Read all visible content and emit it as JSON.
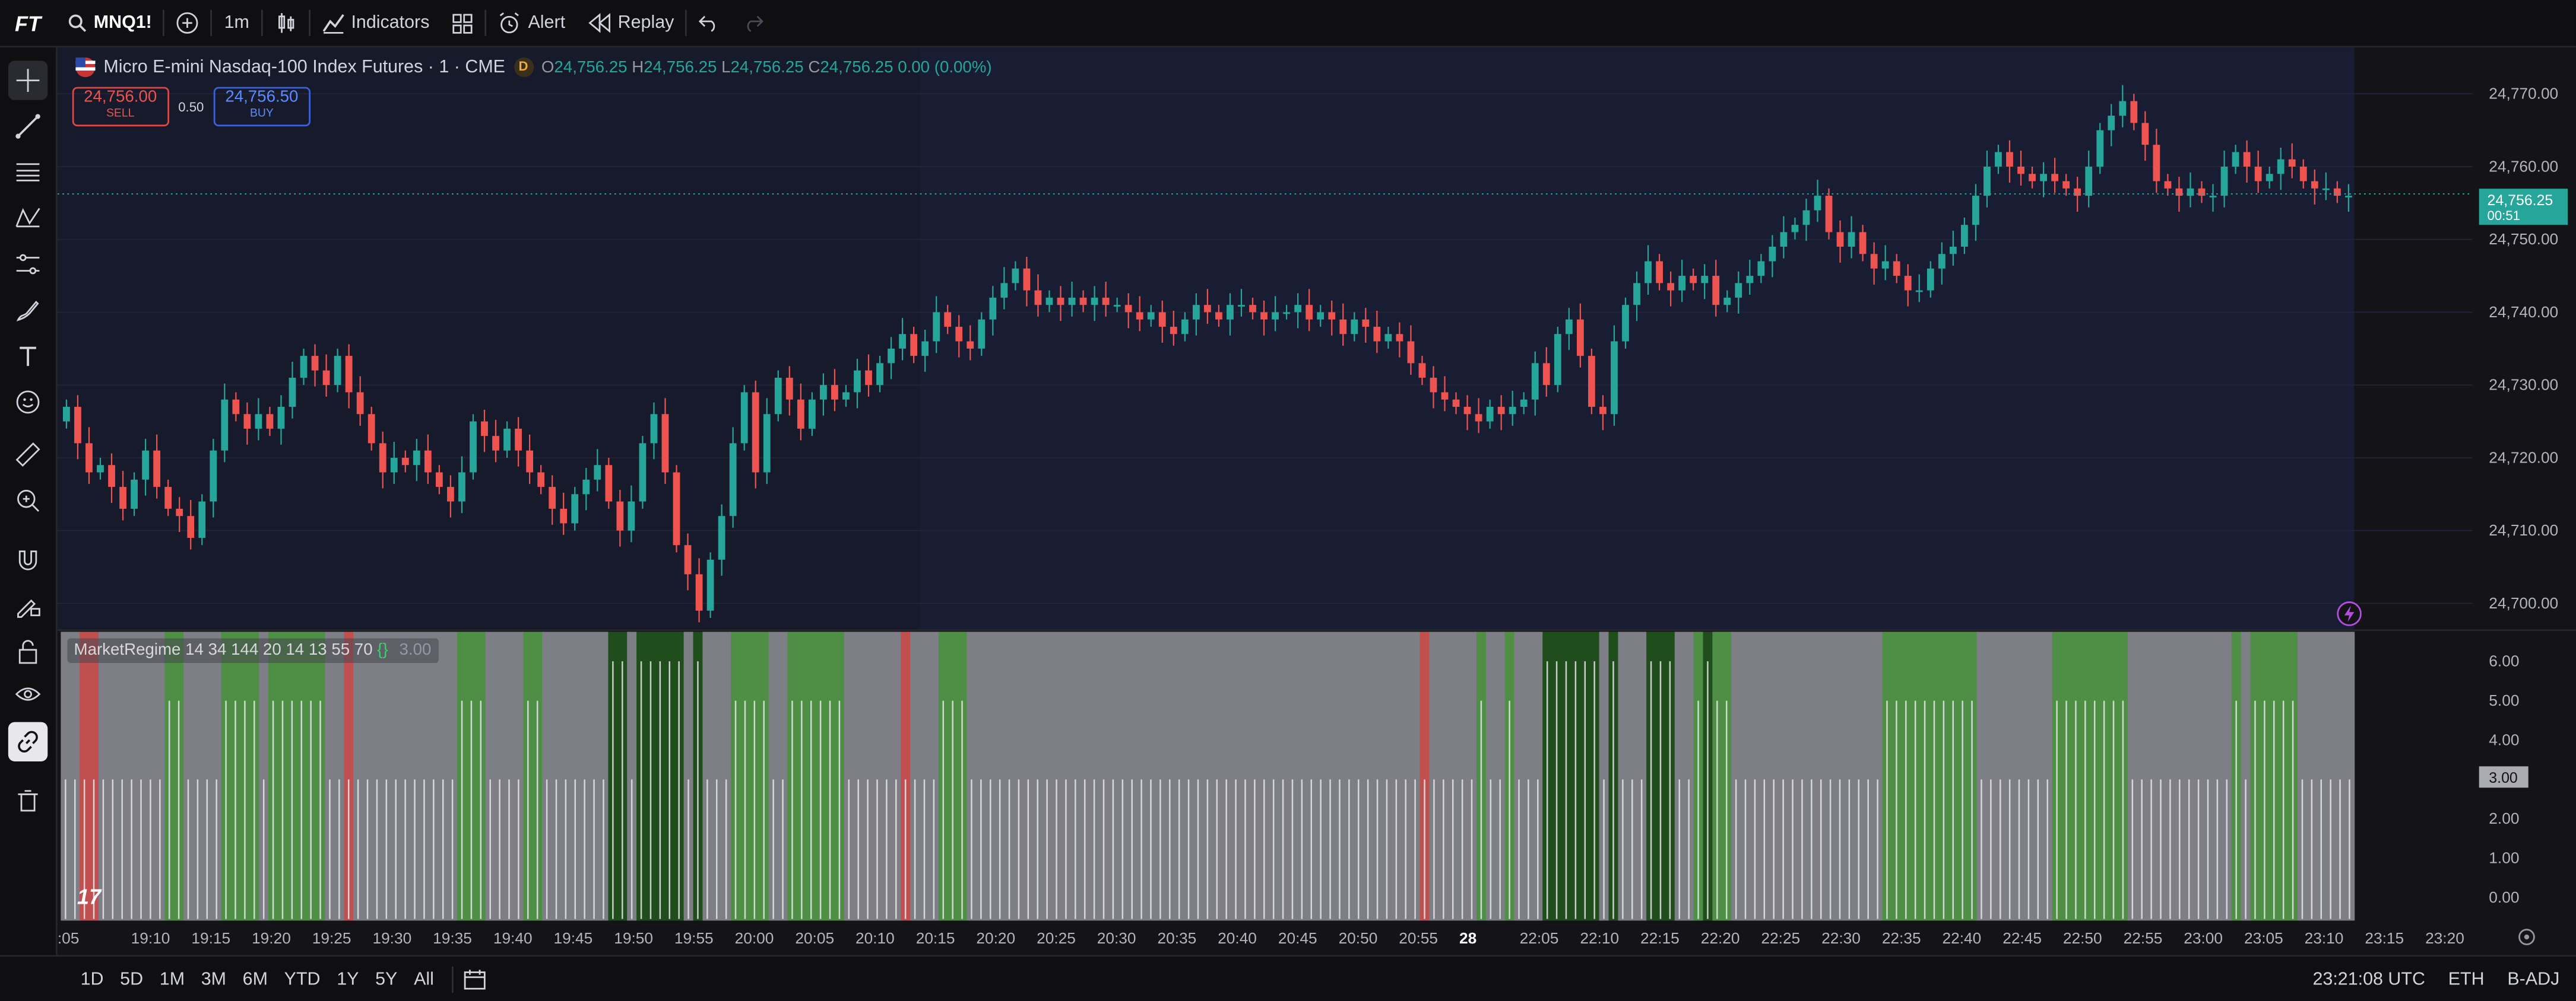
{
  "toolbar": {
    "logo": "FT",
    "symbol": "MNQ1!",
    "interval": "1m",
    "indicators_label": "Indicators",
    "alert_label": "Alert",
    "replay_label": "Replay"
  },
  "legend": {
    "title": "Micro E-mini Nasdaq-100 Index Futures · 1 · CME",
    "badge": "D",
    "o_label": "O",
    "o_value": "24,756.25",
    "h_label": "H",
    "h_value": "24,756.25",
    "l_label": "L",
    "l_value": "24,756.25",
    "c_label": "C",
    "c_value": "24,756.25",
    "change": "0.00 (0.00%)"
  },
  "trade": {
    "sell_price": "24,756.00",
    "sell_label": "SELL",
    "spread": "0.50",
    "buy_price": "24,756.50",
    "buy_label": "BUY"
  },
  "price_axis": {
    "ticks": [
      "24,770.00",
      "24,760.00",
      "24,750.00",
      "24,740.00",
      "24,730.00",
      "24,720.00",
      "24,710.00",
      "24,700.00"
    ],
    "last_price": "24,756.25",
    "countdown": "00:51"
  },
  "indicator": {
    "name": "MarketRegime 14 34 144 20 14 13 55 70",
    "value": "3.00",
    "axis_ticks": [
      "6.00",
      "5.00",
      "4.00",
      "3.00",
      "2.00",
      "1.00",
      "0.00"
    ],
    "last_value": "3.00"
  },
  "time_axis": {
    "labels": [
      ":05",
      "19:10",
      "19:15",
      "19:20",
      "19:25",
      "19:30",
      "19:35",
      "19:40",
      "19:45",
      "19:50",
      "19:55",
      "20:00",
      "20:05",
      "20:10",
      "20:15",
      "20:20",
      "20:25",
      "20:30",
      "20:35",
      "20:40",
      "20:45",
      "20:50",
      "20:55",
      "28",
      "22:05",
      "22:10",
      "22:15",
      "22:20",
      "22:25",
      "22:30",
      "22:35",
      "22:40",
      "22:45",
      "22:50",
      "22:55",
      "23:00",
      "23:05",
      "23:10",
      "23:15",
      "23:20"
    ]
  },
  "bottombar": {
    "ranges": [
      "1D",
      "5D",
      "1M",
      "3M",
      "6M",
      "YTD",
      "1Y",
      "5Y",
      "All"
    ],
    "clock": "23:21:08 UTC",
    "session": "ETH",
    "adjust": "B-ADJ"
  },
  "chart_data": {
    "type": "candlestick",
    "y_range": [
      24697,
      24775
    ],
    "up_color": "#26a69a",
    "down_color": "#ef5350",
    "closes": [
      24727,
      24722,
      24718,
      24719,
      24716,
      24713,
      24717,
      24721,
      24716,
      24713,
      24712,
      24709,
      24714,
      24721,
      24728,
      24726,
      24724,
      24726,
      24724,
      24727,
      24731,
      24734,
      24732,
      24730,
      24734,
      24729,
      24726,
      24722,
      24718,
      24720,
      24719,
      24721,
      24718,
      24716,
      24714,
      24718,
      24725,
      24723,
      24721,
      24724,
      24721,
      24718,
      24716,
      24713,
      24711,
      24715,
      24717,
      24719,
      24714,
      24710,
      24714,
      24722,
      24726,
      24718,
      24708,
      24704,
      24699,
      24706,
      24712,
      24722,
      24729,
      24718,
      24726,
      24731,
      24728,
      24724,
      24728,
      24730,
      24728,
      24729,
      24732,
      24730,
      24733,
      24735,
      24737,
      24734,
      24736,
      24740,
      24738,
      24736,
      24735,
      24739,
      24742,
      24744,
      24746,
      24743,
      24741,
      24742,
      24741,
      24742,
      24741,
      24742,
      24741,
      24741,
      24740,
      24739,
      24740,
      24738,
      24737,
      24739,
      24741,
      24740,
      24739,
      24741,
      24741,
      24740,
      24739,
      24740,
      24740,
      24741,
      24739,
      24740,
      24739,
      24737,
      24739,
      24738,
      24736,
      24737,
      24736,
      24733,
      24731,
      24729,
      24728,
      24727,
      24726,
      24725,
      24727,
      24726,
      24727,
      24728,
      24733,
      24730,
      24737,
      24739,
      24734,
      24727,
      24726,
      24736,
      24741,
      24744,
      24747,
      24744,
      24743,
      24745,
      24744,
      24745,
      24741,
      24742,
      24744,
      24745,
      24747,
      24749,
      24751,
      24752,
      24754,
      24756,
      24751,
      24749,
      24751,
      24748,
      24746,
      24747,
      24745,
      24743,
      24743,
      24746,
      24748,
      24749,
      24752,
      24756,
      24760,
      24762,
      24760,
      24759,
      24758,
      24759,
      24758,
      24757,
      24756,
      24760,
      24765,
      24767,
      24769,
      24766,
      24763,
      24758,
      24757,
      24756,
      24757,
      24756,
      24756,
      24760,
      24762,
      24760,
      24758,
      24759,
      24761,
      24760,
      24758,
      24757,
      24757,
      24756,
      24756
    ]
  },
  "indicator_data": {
    "regime_segments": [
      {
        "from": 0,
        "to": 2,
        "c": "gray"
      },
      {
        "from": 2,
        "to": 4,
        "c": "red"
      },
      {
        "from": 4,
        "to": 11,
        "c": "gray"
      },
      {
        "from": 11,
        "to": 13,
        "c": "green"
      },
      {
        "from": 13,
        "to": 17,
        "c": "gray"
      },
      {
        "from": 17,
        "to": 21,
        "c": "green"
      },
      {
        "from": 21,
        "to": 22,
        "c": "gray"
      },
      {
        "from": 22,
        "to": 28,
        "c": "green"
      },
      {
        "from": 28,
        "to": 30,
        "c": "gray"
      },
      {
        "from": 30,
        "to": 31,
        "c": "red"
      },
      {
        "from": 31,
        "to": 42,
        "c": "gray"
      },
      {
        "from": 42,
        "to": 45,
        "c": "green"
      },
      {
        "from": 45,
        "to": 49,
        "c": "gray"
      },
      {
        "from": 49,
        "to": 51,
        "c": "green"
      },
      {
        "from": 51,
        "to": 58,
        "c": "gray"
      },
      {
        "from": 58,
        "to": 60,
        "c": "darkgreen"
      },
      {
        "from": 60,
        "to": 61,
        "c": "gray"
      },
      {
        "from": 61,
        "to": 66,
        "c": "darkgreen"
      },
      {
        "from": 66,
        "to": 67,
        "c": "gray"
      },
      {
        "from": 67,
        "to": 68,
        "c": "darkgreen"
      },
      {
        "from": 68,
        "to": 71,
        "c": "gray"
      },
      {
        "from": 71,
        "to": 75,
        "c": "green"
      },
      {
        "from": 75,
        "to": 77,
        "c": "gray"
      },
      {
        "from": 77,
        "to": 83,
        "c": "green"
      },
      {
        "from": 83,
        "to": 89,
        "c": "gray"
      },
      {
        "from": 89,
        "to": 90,
        "c": "red"
      },
      {
        "from": 90,
        "to": 93,
        "c": "gray"
      },
      {
        "from": 93,
        "to": 96,
        "c": "green"
      },
      {
        "from": 96,
        "to": 144,
        "c": "gray"
      },
      {
        "from": 144,
        "to": 145,
        "c": "red"
      },
      {
        "from": 145,
        "to": 150,
        "c": "gray"
      },
      {
        "from": 150,
        "to": 151,
        "c": "green"
      },
      {
        "from": 151,
        "to": 153,
        "c": "gray"
      },
      {
        "from": 153,
        "to": 154,
        "c": "green"
      },
      {
        "from": 154,
        "to": 157,
        "c": "gray"
      },
      {
        "from": 157,
        "to": 163,
        "c": "darkgreen"
      },
      {
        "from": 163,
        "to": 164,
        "c": "gray"
      },
      {
        "from": 164,
        "to": 165,
        "c": "darkgreen"
      },
      {
        "from": 165,
        "to": 168,
        "c": "gray"
      },
      {
        "from": 168,
        "to": 171,
        "c": "darkgreen"
      },
      {
        "from": 171,
        "to": 173,
        "c": "gray"
      },
      {
        "from": 173,
        "to": 174,
        "c": "green"
      },
      {
        "from": 174,
        "to": 175,
        "c": "darkgreen"
      },
      {
        "from": 175,
        "to": 177,
        "c": "green"
      },
      {
        "from": 177,
        "to": 193,
        "c": "gray"
      },
      {
        "from": 193,
        "to": 203,
        "c": "green"
      },
      {
        "from": 203,
        "to": 211,
        "c": "gray"
      },
      {
        "from": 211,
        "to": 219,
        "c": "green"
      },
      {
        "from": 219,
        "to": 230,
        "c": "gray"
      },
      {
        "from": 230,
        "to": 231,
        "c": "green"
      },
      {
        "from": 231,
        "to": 232,
        "c": "gray"
      },
      {
        "from": 232,
        "to": 237,
        "c": "green"
      },
      {
        "from": 237,
        "to": 243,
        "c": "gray"
      }
    ],
    "bar_levels": {
      "gray": 3,
      "green": 5,
      "darkgreen": 6,
      "red": 3
    }
  },
  "colors": {
    "regime_gray": "#7e7e86",
    "regime_green": "#4e8f45",
    "regime_darkgreen": "#1f4d1c",
    "regime_red": "#c05050",
    "last_price_bg": "#26a69a"
  },
  "icons": [
    "search-icon",
    "plus-circle-icon",
    "candles-icon",
    "indicators-icon",
    "templates-icon",
    "alert-icon",
    "replay-icon",
    "undo-icon",
    "redo-icon",
    "crosshair-icon",
    "trendline-icon",
    "fib-icon",
    "pattern-icon",
    "forecast-icon",
    "brush-icon",
    "text-icon",
    "emoji-icon",
    "ruler-icon",
    "zoom-icon",
    "magnet-icon",
    "lock-draw-icon",
    "lock-icon",
    "eye-icon",
    "link-icon",
    "trash-icon",
    "calendar-icon",
    "settings-icon",
    "lightning-icon"
  ]
}
